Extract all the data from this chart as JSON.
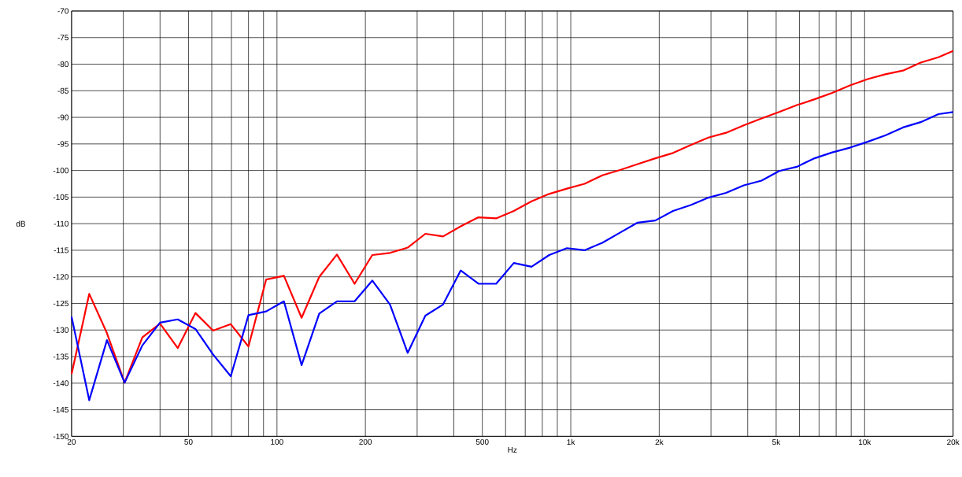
{
  "chart_data": {
    "type": "line",
    "xlabel": "Hz",
    "ylabel": "dB",
    "log": "x",
    "grid": true,
    "marker": "none",
    "line_style": "solid",
    "x": [
      20,
      22.97,
      26.39,
      30.31,
      34.82,
      40,
      45.95,
      52.78,
      60.63,
      69.64,
      80,
      91.9,
      105.6,
      121.3,
      139.3,
      160,
      183.8,
      211.1,
      242.5,
      278.6,
      320,
      367.6,
      422.2,
      485,
      557.2,
      640,
      735.2,
      844.5,
      970.1,
      1114,
      1280,
      1470,
      1689,
      1940,
      2229,
      2560,
      2941,
      3378,
      3880,
      4457,
      5120,
      5881,
      6756,
      7761,
      8915,
      10240,
      11763,
      13512,
      15522,
      17830,
      20000
    ],
    "series": [
      {
        "color": "#ff0000",
        "values": [
          -138.3,
          -123.2,
          -130.6,
          -139.9,
          -131.4,
          -128.8,
          -133.4,
          -126.8,
          -130.1,
          -128.9,
          -133.1,
          -120.5,
          -119.8,
          -127.7,
          -120.0,
          -115.8,
          -121.3,
          -115.9,
          -115.5,
          -114.5,
          -111.9,
          -112.4,
          -110.5,
          -108.8,
          -109.0,
          -107.6,
          -105.8,
          -104.4,
          -103.4,
          -102.5,
          -100.9,
          -99.9,
          -98.8,
          -97.7,
          -96.7,
          -95.2,
          -93.8,
          -92.9,
          -91.5,
          -90.2,
          -89.0,
          -87.7,
          -86.6,
          -85.4,
          -84.0,
          -82.8,
          -81.9,
          -81.2,
          -79.7,
          -78.7,
          -77.5
        ]
      },
      {
        "color": "#0000ff",
        "values": [
          -127.5,
          -143.2,
          -131.9,
          -139.9,
          -132.9,
          -128.6,
          -128.0,
          -129.8,
          -134.6,
          -138.7,
          -127.2,
          -126.5,
          -124.6,
          -136.6,
          -126.9,
          -124.6,
          -124.6,
          -120.7,
          -125.2,
          -134.3,
          -127.3,
          -125.2,
          -118.8,
          -121.3,
          -121.3,
          -117.4,
          -118.1,
          -115.9,
          -114.6,
          -115.0,
          -113.6,
          -111.7,
          -109.8,
          -109.4,
          -107.6,
          -106.5,
          -105.1,
          -104.2,
          -102.8,
          -101.9,
          -100.1,
          -99.3,
          -97.7,
          -96.6,
          -95.7,
          -94.6,
          -93.4,
          -91.9,
          -90.9,
          -89.4,
          -89.0
        ]
      }
    ],
    "xlim": [
      20,
      20000
    ],
    "xticks": [
      20,
      {
        "value": 30,
        "label": null
      },
      {
        "value": 40,
        "label": null
      },
      50,
      {
        "value": 60,
        "label": null
      },
      {
        "value": 70,
        "label": null
      },
      {
        "value": 80,
        "label": null
      },
      {
        "value": 90,
        "label": null
      },
      100,
      200,
      {
        "value": 300,
        "label": null
      },
      {
        "value": 400,
        "label": null
      },
      500,
      {
        "value": 600,
        "label": null
      },
      {
        "value": 700,
        "label": null
      },
      {
        "value": 800,
        "label": null
      },
      {
        "value": 900,
        "label": null
      },
      {
        "value": 1000,
        "label": "1k"
      },
      {
        "value": 2000,
        "label": "2k"
      },
      {
        "value": 3000,
        "label": null
      },
      {
        "value": 4000,
        "label": null
      },
      {
        "value": 5000,
        "label": "5k"
      },
      {
        "value": 6000,
        "label": null
      },
      {
        "value": 7000,
        "label": null
      },
      {
        "value": 8000,
        "label": null
      },
      {
        "value": 9000,
        "label": null
      },
      {
        "value": 10000,
        "label": "10k"
      },
      {
        "value": 20000,
        "label": "20k"
      }
    ],
    "ylim": [
      -150,
      -70
    ],
    "yticks": [
      -150,
      -145,
      -140,
      -135,
      -130,
      -125,
      -120,
      -115,
      -110,
      -105,
      -100,
      -95,
      -90,
      -85,
      -80,
      -75,
      -70
    ]
  }
}
